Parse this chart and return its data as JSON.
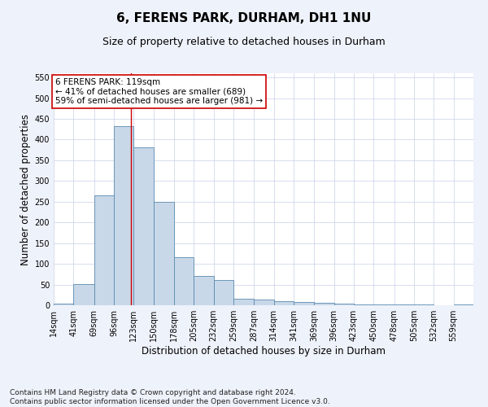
{
  "title": "6, FERENS PARK, DURHAM, DH1 1NU",
  "subtitle": "Size of property relative to detached houses in Durham",
  "xlabel": "Distribution of detached houses by size in Durham",
  "ylabel": "Number of detached properties",
  "footnote1": "Contains HM Land Registry data © Crown copyright and database right 2024.",
  "footnote2": "Contains public sector information licensed under the Open Government Licence v3.0.",
  "annotation_line1": "6 FERENS PARK: 119sqm",
  "annotation_line2": "← 41% of detached houses are smaller (689)",
  "annotation_line3": "59% of semi-detached houses are larger (981) →",
  "property_size": 119,
  "bar_color": "#c8d8e8",
  "bar_edge_color": "#5a8ab0",
  "vline_color": "#cc0000",
  "vline_x": 119,
  "annotation_box_edge": "#cc0000",
  "categories": [
    "14sqm",
    "41sqm",
    "69sqm",
    "96sqm",
    "123sqm",
    "150sqm",
    "178sqm",
    "205sqm",
    "232sqm",
    "259sqm",
    "287sqm",
    "314sqm",
    "341sqm",
    "369sqm",
    "396sqm",
    "423sqm",
    "450sqm",
    "478sqm",
    "505sqm",
    "532sqm",
    "559sqm"
  ],
  "bin_edges": [
    14,
    41,
    69,
    96,
    123,
    150,
    178,
    205,
    232,
    259,
    287,
    314,
    341,
    369,
    396,
    423,
    450,
    478,
    505,
    532,
    559,
    586
  ],
  "values": [
    3,
    52,
    265,
    433,
    381,
    250,
    115,
    70,
    60,
    15,
    13,
    10,
    7,
    6,
    4,
    2,
    1,
    1,
    1,
    0,
    1
  ],
  "ylim": [
    0,
    560
  ],
  "yticks": [
    0,
    50,
    100,
    150,
    200,
    250,
    300,
    350,
    400,
    450,
    500,
    550
  ],
  "background_color": "#eef2fa",
  "plot_bg_color": "#ffffff",
  "grid_color": "#c8d0e8",
  "title_fontsize": 11,
  "subtitle_fontsize": 9,
  "axis_label_fontsize": 8.5,
  "tick_fontsize": 7,
  "annotation_fontsize": 7.5,
  "footnote_fontsize": 6.5
}
